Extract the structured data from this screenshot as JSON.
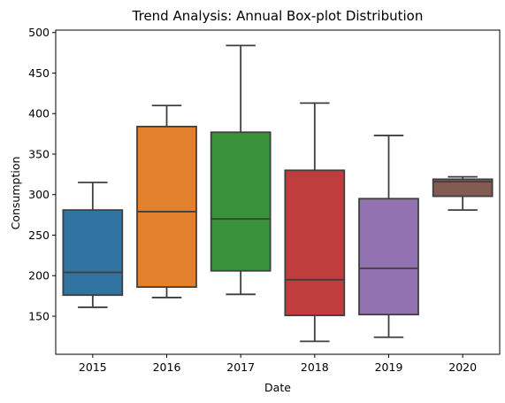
{
  "chart_data": {
    "type": "box",
    "title": "Trend Analysis: Annual Box-plot Distribution",
    "xlabel": "Date",
    "ylabel": "Consumption",
    "ylim": [
      103,
      503
    ],
    "yticks": [
      150,
      200,
      250,
      300,
      350,
      400,
      450,
      500
    ],
    "categories": [
      "2015",
      "2016",
      "2017",
      "2018",
      "2019",
      "2020"
    ],
    "grid": false,
    "legend": "none",
    "series": [
      {
        "category": "2015",
        "min": 161,
        "q1": 176,
        "median": 204,
        "q3": 281,
        "max": 315,
        "color": "#3274a1"
      },
      {
        "category": "2016",
        "min": 173,
        "q1": 186,
        "median": 279,
        "q3": 384,
        "max": 410,
        "color": "#e1812c"
      },
      {
        "category": "2017",
        "min": 177,
        "q1": 206,
        "median": 270,
        "q3": 377,
        "max": 484,
        "color": "#3a923a"
      },
      {
        "category": "2018",
        "min": 119,
        "q1": 151,
        "median": 195,
        "q3": 330,
        "max": 413,
        "color": "#c03d3e"
      },
      {
        "category": "2019",
        "min": 124,
        "q1": 152,
        "median": 209,
        "q3": 295,
        "max": 373,
        "color": "#9372b2"
      },
      {
        "category": "2020",
        "min": 281,
        "q1": 298,
        "median": 316,
        "q3": 319,
        "max": 322,
        "color": "#845b53"
      }
    ]
  }
}
